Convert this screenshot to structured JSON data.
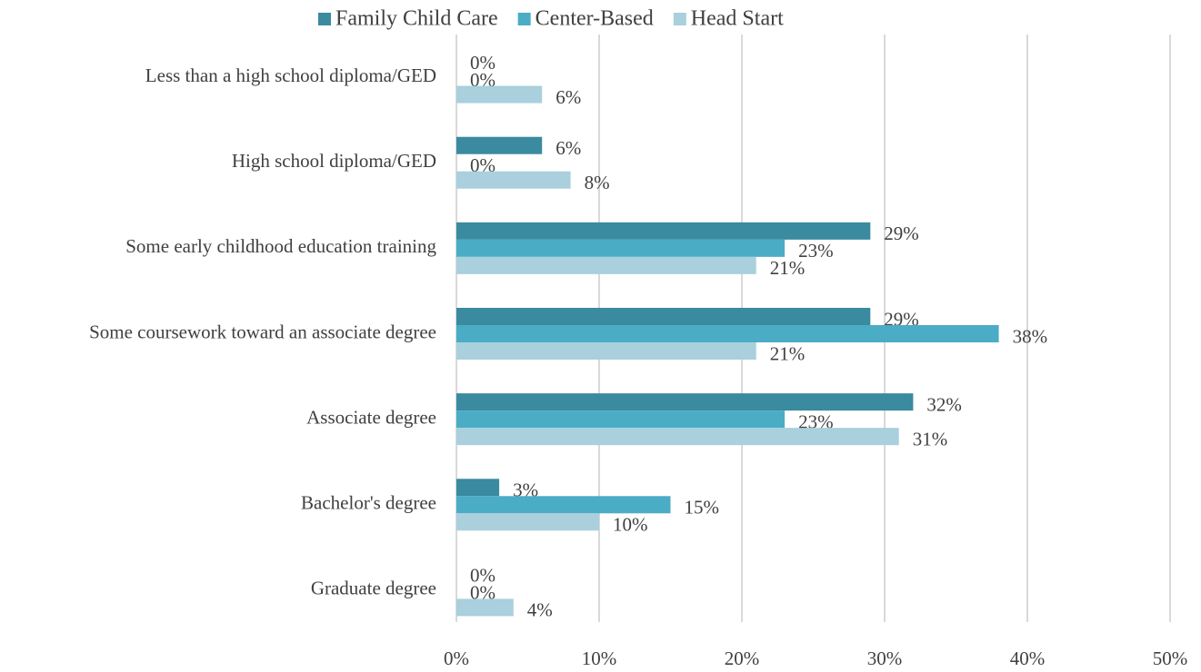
{
  "chart_data": {
    "type": "hbar",
    "categories": [
      "Less than a high school diploma/GED",
      "High school diploma/GED",
      "Some early childhood education training",
      "Some coursework toward an associate degree",
      "Associate degree",
      "Bachelor's degree",
      "Graduate degree"
    ],
    "series": [
      {
        "name": "Family Child Care",
        "color": "#3a8aa0",
        "values": [
          0,
          6,
          29,
          29,
          32,
          3,
          0
        ],
        "value_labels": [
          "0%",
          "6%",
          "29%",
          "29%",
          "32%",
          "3%",
          "0%"
        ]
      },
      {
        "name": "Center-Based",
        "color": "#4bacc6",
        "values": [
          0,
          0,
          23,
          38,
          23,
          15,
          0
        ],
        "value_labels": [
          "0%",
          "0%",
          "23%",
          "38%",
          "23%",
          "15%",
          "0%"
        ]
      },
      {
        "name": "Head Start",
        "color": "#a9d0dc",
        "values": [
          6,
          8,
          21,
          21,
          31,
          10,
          4
        ],
        "value_labels": [
          "6%",
          "8%",
          "21%",
          "21%",
          "31%",
          "10%",
          "4%"
        ]
      }
    ],
    "xlim": [
      0,
      50
    ],
    "xticks": [
      {
        "value": 0,
        "label": "0%"
      },
      {
        "value": 10,
        "label": "10%"
      },
      {
        "value": 20,
        "label": "20%"
      },
      {
        "value": 30,
        "label": "30%"
      },
      {
        "value": 40,
        "label": "40%"
      },
      {
        "value": 50,
        "label": "50%"
      }
    ],
    "grid": true,
    "legend": "top"
  }
}
